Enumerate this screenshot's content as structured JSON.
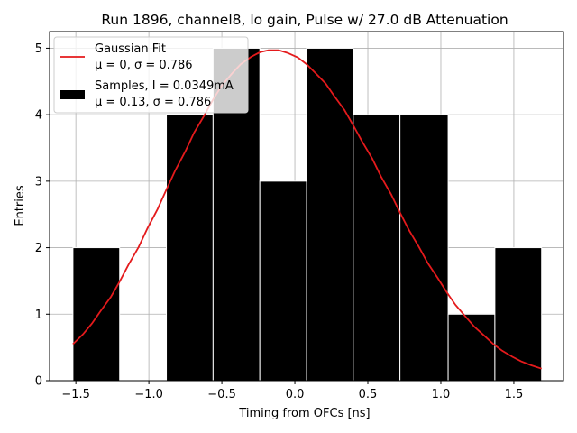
{
  "chart_data": {
    "type": "bar",
    "title": "Run 1896, channel8, lo gain, Pulse w/ 27.0 dB Attenuation",
    "xlabel": "Timing from OFCs [ns]",
    "ylabel": "Entries",
    "xlim": [
      -1.68,
      1.84
    ],
    "ylim": [
      0,
      5.25
    ],
    "xticks": [
      -1.5,
      -1.0,
      -0.5,
      0.0,
      0.5,
      1.0,
      1.5
    ],
    "xtick_labels": [
      "−1.5",
      "−1.0",
      "−0.5",
      "0.0",
      "0.5",
      "1.0",
      "1.5"
    ],
    "yticks": [
      0,
      1,
      2,
      3,
      4,
      5
    ],
    "ytick_labels": [
      "0",
      "1",
      "2",
      "3",
      "4",
      "5"
    ],
    "grid": true,
    "histogram": {
      "name": "Samples, I = 0.0349mA",
      "stats": "μ = 0.13, σ = 0.786",
      "color": "#000000",
      "edge_color": "#ffffff",
      "bin_edges": [
        -1.52,
        -1.2,
        -0.88,
        -0.56,
        -0.24,
        0.08,
        0.4,
        0.72,
        1.05,
        1.37,
        1.69
      ],
      "counts": [
        2,
        0,
        4,
        5,
        3,
        5,
        4,
        4,
        1,
        2
      ]
    },
    "fit": {
      "name": "Gaussian Fit",
      "stats": "μ = 0, σ = 0.786",
      "color": "#e41a1c",
      "x": [
        -1.52,
        -1.45,
        -1.39,
        -1.33,
        -1.26,
        -1.2,
        -1.14,
        -1.07,
        -1.01,
        -0.94,
        -0.88,
        -0.82,
        -0.75,
        -0.69,
        -0.62,
        -0.56,
        -0.5,
        -0.43,
        -0.37,
        -0.3,
        -0.24,
        -0.18,
        -0.11,
        -0.05,
        0.02,
        0.08,
        0.14,
        0.21,
        0.27,
        0.34,
        0.4,
        0.46,
        0.53,
        0.59,
        0.66,
        0.72,
        0.78,
        0.85,
        0.91,
        0.98,
        1.04,
        1.1,
        1.17,
        1.23,
        1.3,
        1.36,
        1.42,
        1.49,
        1.55,
        1.62,
        1.69
      ],
      "y": [
        0.55,
        0.7,
        0.86,
        1.05,
        1.26,
        1.49,
        1.74,
        2.01,
        2.29,
        2.58,
        2.87,
        3.16,
        3.45,
        3.73,
        3.99,
        4.23,
        4.44,
        4.62,
        4.76,
        4.87,
        4.94,
        4.97,
        4.97,
        4.93,
        4.86,
        4.76,
        4.63,
        4.47,
        4.28,
        4.07,
        3.84,
        3.6,
        3.34,
        3.07,
        2.8,
        2.53,
        2.27,
        2.01,
        1.77,
        1.54,
        1.33,
        1.14,
        0.96,
        0.81,
        0.67,
        0.55,
        0.45,
        0.36,
        0.29,
        0.23,
        0.18
      ]
    },
    "legend_position": "top-left"
  }
}
